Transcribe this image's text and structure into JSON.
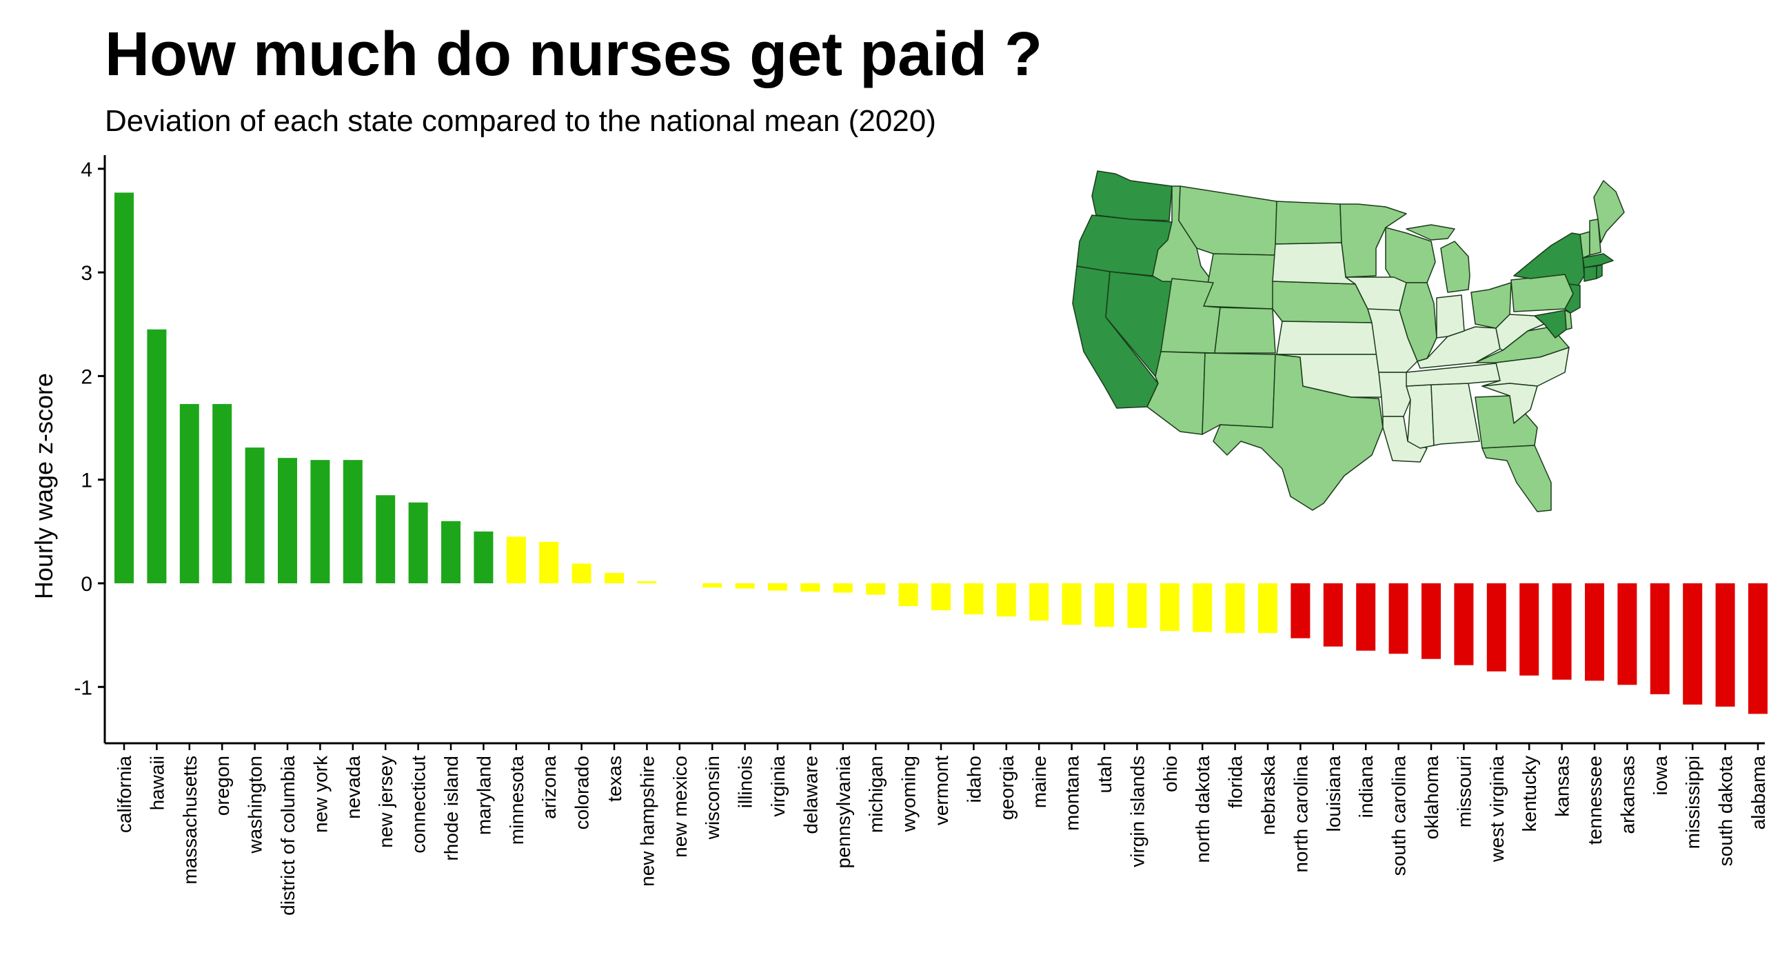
{
  "header": {
    "title": "How much do nurses get paid ?",
    "subtitle": "Deviation of each state compared to the national mean (2020)"
  },
  "colors": {
    "above": "#1ea61a",
    "near": "#ffff00",
    "below": "#e00000",
    "map_dark": "#2f9443",
    "map_mid": "#90d088",
    "map_light": "#e0f2da",
    "map_stroke": "#1a3a1a"
  },
  "chart_data": {
    "type": "bar",
    "ylabel": "Hourly wage z-score",
    "ylim": [
      -1.5,
      4
    ],
    "yticks": [
      -1,
      0,
      1,
      2,
      3,
      4
    ],
    "grid": false,
    "categories": [
      "california",
      "hawaii",
      "massachusetts",
      "oregon",
      "washington",
      "district of columbia",
      "new york",
      "nevada",
      "new jersey",
      "connecticut",
      "rhode island",
      "maryland",
      "minnesota",
      "arizona",
      "colorado",
      "texas",
      "new hampshire",
      "new mexico",
      "wisconsin",
      "illinois",
      "virginia",
      "delaware",
      "pennsylvania",
      "michigan",
      "wyoming",
      "vermont",
      "idaho",
      "georgia",
      "maine",
      "montana",
      "utah",
      "virgin islands",
      "ohio",
      "north dakota",
      "florida",
      "nebraska",
      "north carolina",
      "louisiana",
      "indiana",
      "south carolina",
      "oklahoma",
      "missouri",
      "west virginia",
      "kentucky",
      "kansas",
      "tennessee",
      "arkansas",
      "iowa",
      "mississippi",
      "south dakota",
      "alabama"
    ],
    "values": [
      3.77,
      2.45,
      1.73,
      1.73,
      1.31,
      1.21,
      1.19,
      1.19,
      0.85,
      0.78,
      0.6,
      0.5,
      0.45,
      0.4,
      0.19,
      0.1,
      0.02,
      0.0,
      -0.04,
      -0.05,
      -0.07,
      -0.08,
      -0.09,
      -0.11,
      -0.22,
      -0.26,
      -0.3,
      -0.32,
      -0.36,
      -0.4,
      -0.42,
      -0.43,
      -0.46,
      -0.47,
      -0.48,
      -0.48,
      -0.53,
      -0.61,
      -0.65,
      -0.68,
      -0.73,
      -0.79,
      -0.85,
      -0.89,
      -0.93,
      -0.94,
      -0.98,
      -1.07,
      -1.17,
      -1.19,
      -1.26
    ],
    "color_groups": [
      "above",
      "above",
      "above",
      "above",
      "above",
      "above",
      "above",
      "above",
      "above",
      "above",
      "above",
      "above",
      "near",
      "near",
      "near",
      "near",
      "near",
      "near",
      "near",
      "near",
      "near",
      "near",
      "near",
      "near",
      "near",
      "near",
      "near",
      "near",
      "near",
      "near",
      "near",
      "near",
      "near",
      "near",
      "near",
      "near",
      "below",
      "below",
      "below",
      "below",
      "below",
      "below",
      "below",
      "below",
      "below",
      "below",
      "below",
      "below",
      "below",
      "below",
      "below"
    ]
  },
  "map": {
    "icon": "us-choropleth-map"
  }
}
